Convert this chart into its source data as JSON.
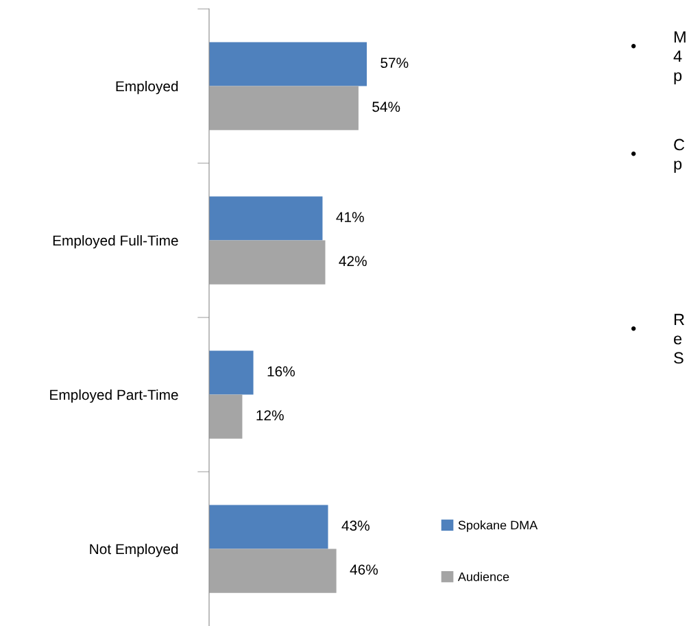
{
  "chart_data": {
    "type": "bar",
    "orientation": "horizontal",
    "categories": [
      "Employed",
      "Employed Full-Time",
      "Employed Part-Time",
      "Not Employed"
    ],
    "series": [
      {
        "name": "Spokane DMA",
        "color": "#4f81bd",
        "values": [
          57,
          41,
          16,
          43
        ],
        "value_labels": [
          "57%",
          "41%",
          "16%",
          "43%"
        ]
      },
      {
        "name": "Audience",
        "color": "#a5a5a5",
        "values": [
          54,
          42,
          12,
          46
        ],
        "value_labels": [
          "54%",
          "42%",
          "12%",
          "46%"
        ]
      }
    ],
    "legend": "bottom right",
    "grid": false,
    "annotations": [
      "•",
      "M\n4\np",
      "•",
      "C\np",
      "•",
      "R\ne\nS"
    ]
  }
}
